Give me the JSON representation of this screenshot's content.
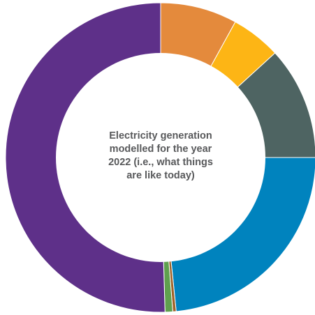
{
  "chart_data": {
    "type": "pie",
    "variant": "donut",
    "title_lines": [
      "Electricity generation",
      "modelled for the year",
      "2022 (i.e., what things",
      "are like today)"
    ],
    "series": [
      {
        "value": 8.0,
        "color": "#E48A3C"
      },
      {
        "value": 5.2,
        "color": "#FDB515"
      },
      {
        "value": 11.8,
        "color": "#4E6462"
      },
      {
        "value": 23.4,
        "color": "#0083BE"
      },
      {
        "value": 0.35,
        "color": "#A0632A"
      },
      {
        "value": 0.8,
        "color": "#5FA04E"
      },
      {
        "value": 50.45,
        "color": "#5E3089"
      }
    ]
  }
}
